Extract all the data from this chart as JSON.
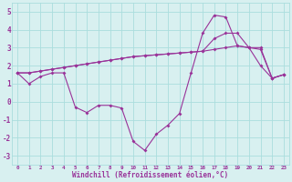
{
  "x": [
    0,
    1,
    2,
    3,
    4,
    5,
    6,
    7,
    8,
    9,
    10,
    11,
    12,
    13,
    14,
    15,
    16,
    17,
    18,
    19,
    20,
    21,
    22,
    23
  ],
  "line1": [
    1.6,
    1.0,
    1.4,
    1.6,
    1.6,
    -0.3,
    -0.6,
    -0.2,
    -0.2,
    -0.35,
    -2.2,
    -2.7,
    -1.8,
    -1.3,
    -0.65,
    1.6,
    3.8,
    4.8,
    4.7,
    3.1,
    3.0,
    2.0,
    1.3,
    1.5
  ],
  "line2": [
    1.6,
    1.6,
    1.7,
    1.8,
    1.9,
    2.0,
    2.1,
    2.2,
    2.3,
    2.4,
    2.5,
    2.55,
    2.6,
    2.65,
    2.7,
    2.75,
    2.8,
    3.5,
    3.8,
    3.8,
    3.0,
    3.0,
    1.3,
    1.5
  ],
  "line3": [
    1.6,
    1.6,
    1.7,
    1.8,
    1.9,
    2.0,
    2.1,
    2.2,
    2.3,
    2.4,
    2.5,
    2.55,
    2.6,
    2.65,
    2.7,
    2.75,
    2.8,
    2.9,
    3.0,
    3.1,
    3.0,
    2.9,
    1.3,
    1.5
  ],
  "line_color": "#993399",
  "bg_color": "#d8f0f0",
  "grid_color": "#aadddd",
  "xlabel": "Windchill (Refroidissement éolien,°C)",
  "yticks": [
    -3,
    -2,
    -1,
    0,
    1,
    2,
    3,
    4,
    5
  ],
  "xtick_labels": [
    "0",
    "1",
    "2",
    "3",
    "4",
    "5",
    "6",
    "7",
    "8",
    "9",
    "10",
    "11",
    "12",
    "13",
    "14",
    "15",
    "16",
    "17",
    "18",
    "19",
    "20",
    "21",
    "22",
    "23"
  ],
  "xticks": [
    0,
    1,
    2,
    3,
    4,
    5,
    6,
    7,
    8,
    9,
    10,
    11,
    12,
    13,
    14,
    15,
    16,
    17,
    18,
    19,
    20,
    21,
    22,
    23
  ],
  "ylim": [
    -3.5,
    5.5
  ],
  "xlim": [
    -0.5,
    23.5
  ]
}
